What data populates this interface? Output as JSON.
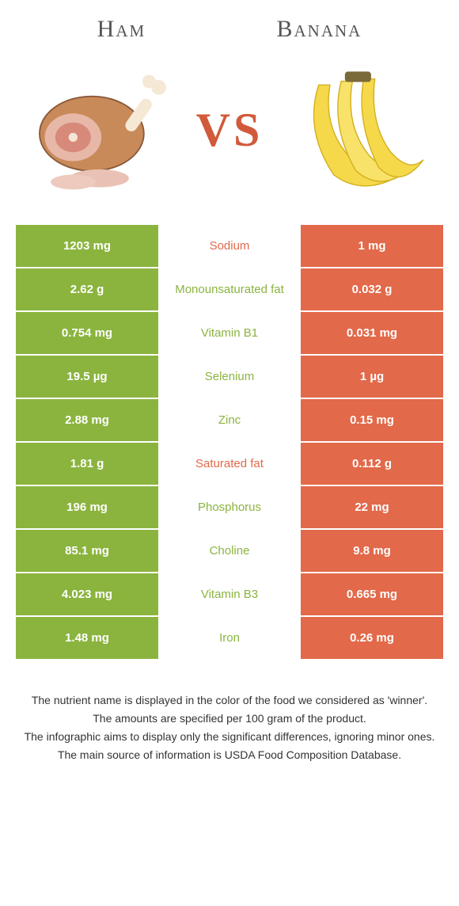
{
  "header": {
    "left_title": "Ham",
    "right_title": "Banana",
    "vs": "VS"
  },
  "colors": {
    "green": "#8bb43f",
    "orange": "#e2694a",
    "text_footer": "#333333",
    "bg": "#ffffff"
  },
  "table": {
    "rows": [
      {
        "left": "1203 mg",
        "mid": "Sodium",
        "right": "1 mg",
        "left_bg": "green",
        "right_bg": "orange",
        "mid_color": "orange"
      },
      {
        "left": "2.62 g",
        "mid": "Monounsaturated fat",
        "right": "0.032 g",
        "left_bg": "green",
        "right_bg": "orange",
        "mid_color": "green"
      },
      {
        "left": "0.754 mg",
        "mid": "Vitamin B1",
        "right": "0.031 mg",
        "left_bg": "green",
        "right_bg": "orange",
        "mid_color": "green"
      },
      {
        "left": "19.5 µg",
        "mid": "Selenium",
        "right": "1 µg",
        "left_bg": "green",
        "right_bg": "orange",
        "mid_color": "green"
      },
      {
        "left": "2.88 mg",
        "mid": "Zinc",
        "right": "0.15 mg",
        "left_bg": "green",
        "right_bg": "orange",
        "mid_color": "green"
      },
      {
        "left": "1.81 g",
        "mid": "Saturated fat",
        "right": "0.112 g",
        "left_bg": "green",
        "right_bg": "orange",
        "mid_color": "orange"
      },
      {
        "left": "196 mg",
        "mid": "Phosphorus",
        "right": "22 mg",
        "left_bg": "green",
        "right_bg": "orange",
        "mid_color": "green"
      },
      {
        "left": "85.1 mg",
        "mid": "Choline",
        "right": "9.8 mg",
        "left_bg": "green",
        "right_bg": "orange",
        "mid_color": "green"
      },
      {
        "left": "4.023 mg",
        "mid": "Vitamin B3",
        "right": "0.665 mg",
        "left_bg": "green",
        "right_bg": "orange",
        "mid_color": "green"
      },
      {
        "left": "1.48 mg",
        "mid": "Iron",
        "right": "0.26 mg",
        "left_bg": "green",
        "right_bg": "orange",
        "mid_color": "green"
      }
    ]
  },
  "footer": {
    "line1": "The nutrient name is displayed in the color of the food we considered as 'winner'.",
    "line2": "The amounts are specified per 100 gram of the product.",
    "line3": "The infographic aims to display only the significant differences, ignoring minor ones.",
    "line4": "The main source of information is USDA Food Composition Database."
  }
}
